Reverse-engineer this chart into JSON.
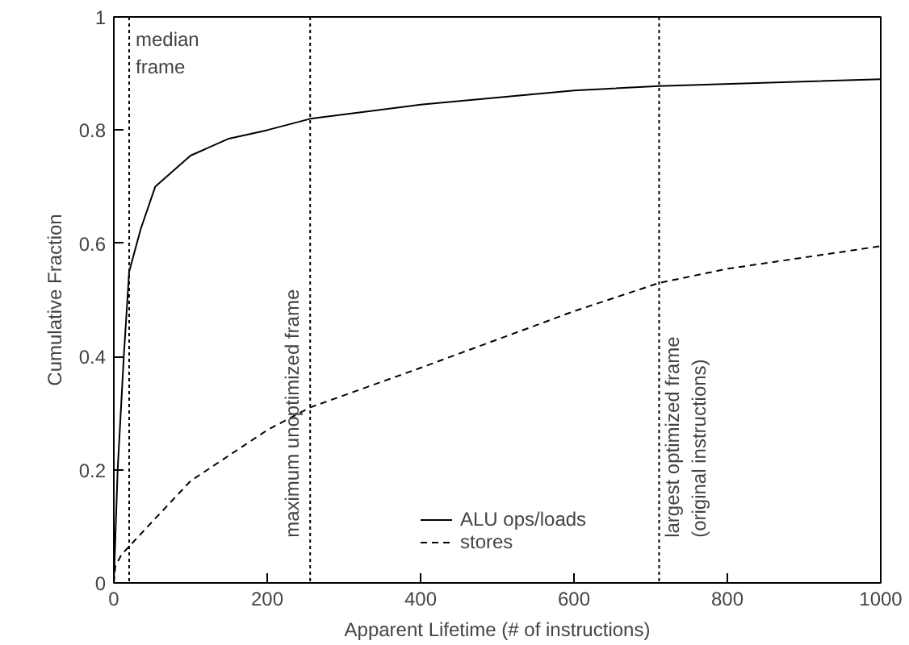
{
  "chart_data": {
    "type": "line",
    "xlabel": "Apparent Lifetime (# of instructions)",
    "ylabel": "Cumulative Fraction",
    "xlim": [
      0,
      1000
    ],
    "ylim": [
      0,
      1
    ],
    "xticks": [
      0,
      200,
      400,
      600,
      800,
      1000
    ],
    "yticks": [
      0,
      0.2,
      0.4,
      0.6,
      0.8,
      1
    ],
    "grid": false,
    "legend": "bottom right",
    "series": [
      {
        "name": "ALU ops/loads",
        "color": "#000000",
        "line_style": "solid",
        "x": [
          0,
          5,
          13,
          20,
          35,
          54,
          100,
          150,
          200,
          256,
          400,
          600,
          711,
          1000
        ],
        "values": [
          0,
          0.2,
          0.4,
          0.55,
          0.625,
          0.7,
          0.755,
          0.785,
          0.8,
          0.82,
          0.845,
          0.87,
          0.878,
          0.89
        ]
      },
      {
        "name": "stores",
        "color": "#000000",
        "line_style": "dashed",
        "x": [
          0,
          2,
          10,
          50,
          100,
          200,
          256,
          400,
          500,
          600,
          711,
          800,
          1000
        ],
        "values": [
          0,
          0.03,
          0.05,
          0.108,
          0.18,
          0.27,
          0.31,
          0.38,
          0.43,
          0.48,
          0.53,
          0.555,
          0.595
        ]
      }
    ],
    "ref_lines": [
      {
        "axis": "x",
        "value": 20,
        "label": "median\nframe",
        "line_style": "dotted"
      },
      {
        "axis": "x",
        "value": 256,
        "label": "maximum unoptimized frame",
        "line_style": "dotted"
      },
      {
        "axis": "x",
        "value": 711,
        "label": "largest optimized frame\n(original instructions)",
        "line_style": "dotted"
      }
    ]
  }
}
